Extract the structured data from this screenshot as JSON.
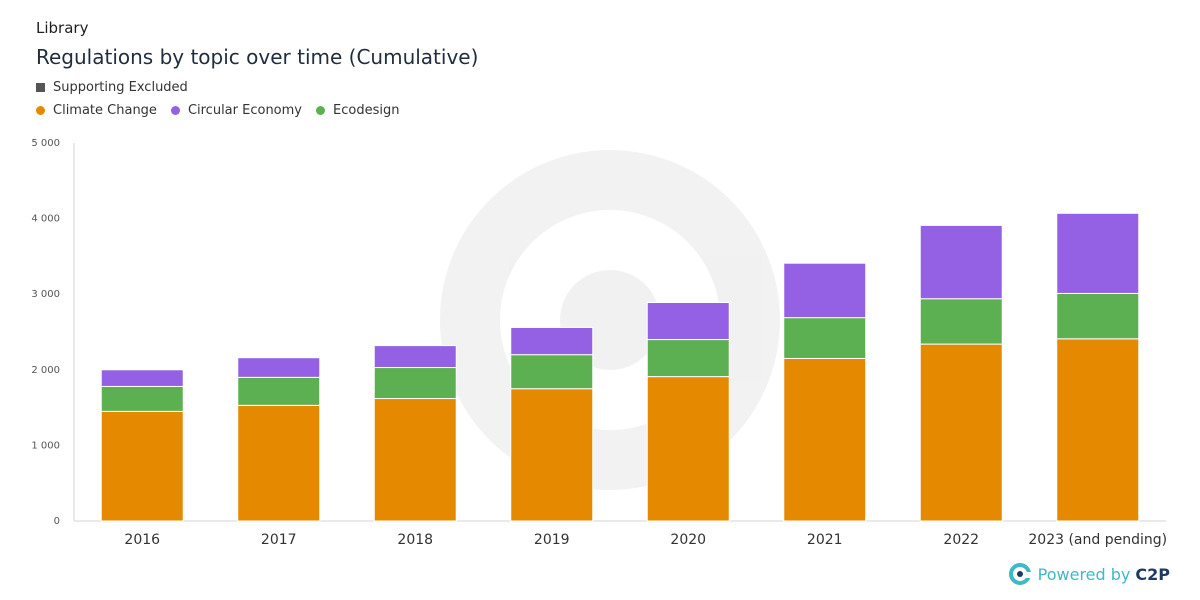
{
  "header": {
    "subtitle": "Library",
    "title": "Regulations by topic over time (Cumulative)"
  },
  "legend": {
    "filter_label": "Supporting Excluded",
    "filter_color": "#555555",
    "items": [
      {
        "label": "Climate Change",
        "color": "#e58a00"
      },
      {
        "label": "Circular Economy",
        "color": "#9461e4"
      },
      {
        "label": "Ecodesign",
        "color": "#5cb052"
      }
    ]
  },
  "footer": {
    "powered_label": "Powered by",
    "brand_label": "C2P"
  },
  "chart_data": {
    "type": "bar",
    "stacked": true,
    "categories": [
      "2016",
      "2017",
      "2018",
      "2019",
      "2020",
      "2021",
      "2022",
      "2023 (and pending)"
    ],
    "series": [
      {
        "name": "Climate Change",
        "color": "#e58a00",
        "values": [
          1450,
          1530,
          1620,
          1750,
          1910,
          2150,
          2340,
          2410
        ]
      },
      {
        "name": "Ecodesign",
        "color": "#5cb052",
        "values": [
          330,
          370,
          410,
          450,
          490,
          540,
          600,
          600
        ]
      },
      {
        "name": "Circular Economy",
        "color": "#9461e4",
        "values": [
          220,
          260,
          290,
          360,
          490,
          720,
          970,
          1060
        ]
      }
    ],
    "y_ticks": [
      "0",
      "1 000",
      "2 000",
      "3 000",
      "4 000",
      "5 000"
    ],
    "ylim": [
      0,
      5000
    ],
    "grid": false,
    "legend_position": "top-left"
  }
}
